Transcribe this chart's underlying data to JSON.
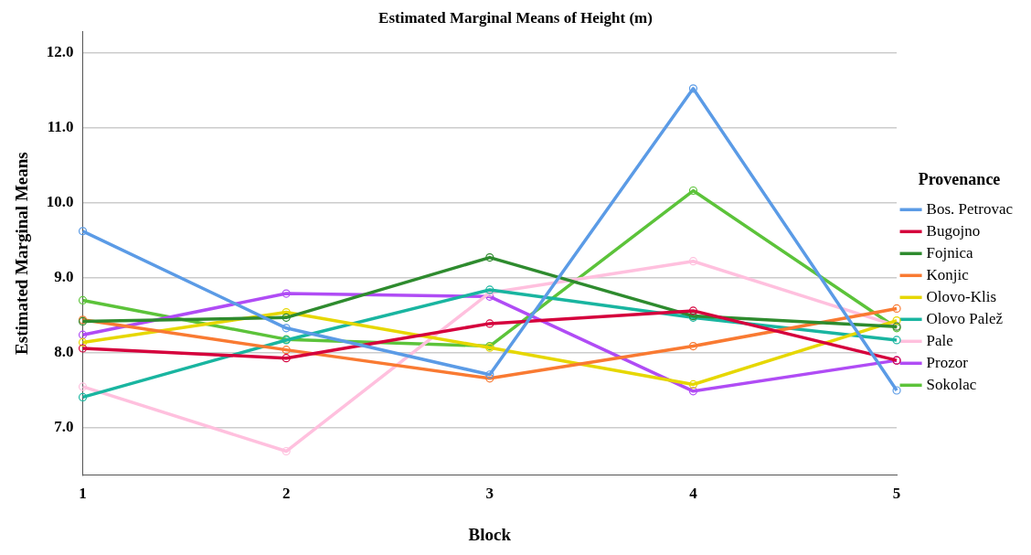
{
  "chart_data": {
    "type": "line",
    "title": "Estimated Marginal Means of Height (m)",
    "xlabel": "Block",
    "ylabel": "Estimated Marginal Means",
    "legend_title": "Provenance",
    "categories": [
      "1",
      "2",
      "3",
      "4",
      "5"
    ],
    "series": [
      {
        "name": "Bos. Petrovac",
        "color": "#5b9be6",
        "values": [
          9.62,
          8.33,
          7.71,
          11.52,
          7.5
        ]
      },
      {
        "name": "Bugojno",
        "color": "#d5003c",
        "values": [
          8.06,
          7.93,
          8.39,
          8.56,
          7.9
        ]
      },
      {
        "name": "Fojnica",
        "color": "#2e8b2e",
        "values": [
          8.42,
          8.47,
          9.27,
          8.49,
          8.35
        ]
      },
      {
        "name": "Konjic",
        "color": "#f97a32",
        "values": [
          8.44,
          8.04,
          7.66,
          8.09,
          8.59
        ]
      },
      {
        "name": "Olovo-Klis",
        "color": "#e6d700",
        "values": [
          8.14,
          8.54,
          8.07,
          7.58,
          8.43
        ]
      },
      {
        "name": "Olovo Palež",
        "color": "#19b5a0",
        "values": [
          7.41,
          8.17,
          8.84,
          8.47,
          8.17
        ]
      },
      {
        "name": "Pale",
        "color": "#ffc0de",
        "values": [
          7.55,
          6.69,
          8.8,
          9.22,
          8.36
        ]
      },
      {
        "name": "Prozor",
        "color": "#b04cf5",
        "values": [
          8.24,
          8.79,
          8.75,
          7.49,
          7.9
        ]
      },
      {
        "name": "Sokolac",
        "color": "#5cc33a",
        "values": [
          8.7,
          8.18,
          8.09,
          10.16,
          8.33
        ]
      }
    ],
    "ylim": [
      6.37,
      12.28
    ],
    "yticks": [
      {
        "value": 7,
        "label": "7.0"
      },
      {
        "value": 8,
        "label": "8.0"
      },
      {
        "value": 9,
        "label": "9.0"
      },
      {
        "value": 10,
        "label": "10.0"
      },
      {
        "value": 11,
        "label": "11.0"
      },
      {
        "value": 12,
        "label": "12.0"
      }
    ],
    "grid": "y",
    "legend": "right",
    "marker": "circle",
    "line_style": "solid"
  }
}
